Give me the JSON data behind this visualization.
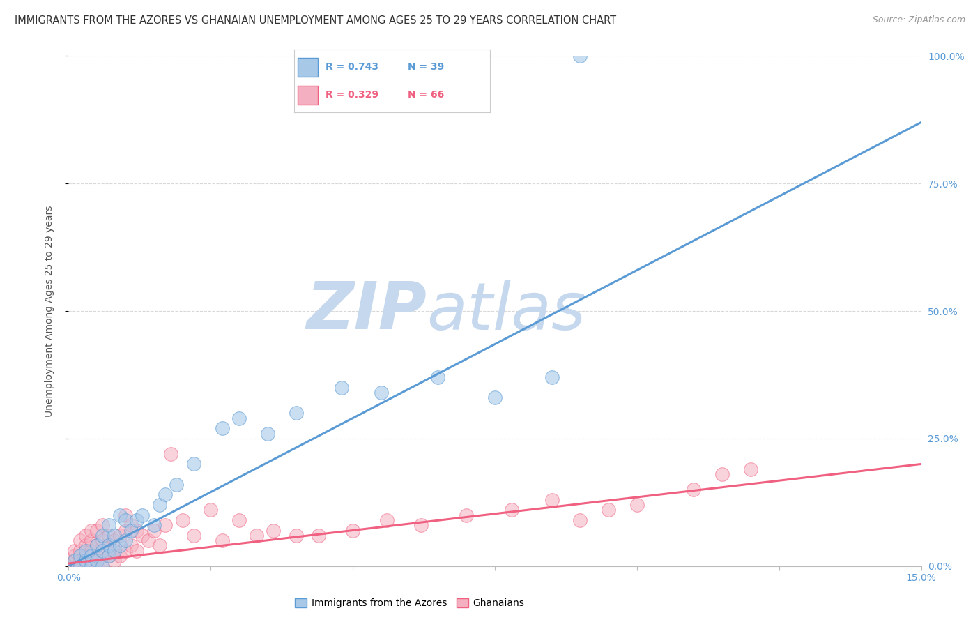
{
  "title": "IMMIGRANTS FROM THE AZORES VS GHANAIAN UNEMPLOYMENT AMONG AGES 25 TO 29 YEARS CORRELATION CHART",
  "source": "Source: ZipAtlas.com",
  "ylabel": "Unemployment Among Ages 25 to 29 years",
  "xmin": 0.0,
  "xmax": 0.15,
  "ymin": 0.0,
  "ymax": 1.0,
  "yticks_right": [
    0.0,
    0.25,
    0.5,
    0.75,
    1.0
  ],
  "ytick_labels_right": [
    "0.0%",
    "25.0%",
    "50.0%",
    "75.0%",
    "100.0%"
  ],
  "blue_R": 0.743,
  "blue_N": 39,
  "pink_R": 0.329,
  "pink_N": 66,
  "blue_color": "#a8c8e8",
  "pink_color": "#f4b0c0",
  "blue_line_color": "#5b9bd5",
  "pink_line_color": "#f06080",
  "legend_label_blue": "Immigrants from the Azores",
  "legend_label_pink": "Ghanaians",
  "watermark_zip": "ZIP",
  "watermark_atlas": "atlas",
  "watermark_color_zip": "#c5d8ed",
  "watermark_color_atlas": "#c5d8ed",
  "background_color": "#ffffff",
  "grid_color": "#d8d8d8",
  "blue_line_intercept": 0.0,
  "blue_line_slope": 5.8,
  "pink_line_intercept": 0.005,
  "pink_line_slope": 1.3,
  "blue_scatter_x": [
    0.001,
    0.002,
    0.002,
    0.003,
    0.003,
    0.004,
    0.004,
    0.005,
    0.005,
    0.006,
    0.006,
    0.006,
    0.007,
    0.007,
    0.007,
    0.008,
    0.008,
    0.009,
    0.009,
    0.01,
    0.01,
    0.011,
    0.012,
    0.013,
    0.015,
    0.016,
    0.017,
    0.019,
    0.022,
    0.027,
    0.03,
    0.035,
    0.04,
    0.048,
    0.055,
    0.065,
    0.075,
    0.085,
    0.09
  ],
  "blue_scatter_y": [
    0.01,
    0.0,
    0.02,
    0.01,
    0.03,
    0.0,
    0.02,
    0.01,
    0.04,
    0.0,
    0.03,
    0.06,
    0.02,
    0.04,
    0.08,
    0.03,
    0.06,
    0.04,
    0.1,
    0.05,
    0.09,
    0.07,
    0.09,
    0.1,
    0.08,
    0.12,
    0.14,
    0.16,
    0.2,
    0.27,
    0.29,
    0.26,
    0.3,
    0.35,
    0.34,
    0.37,
    0.33,
    0.37,
    1.0
  ],
  "pink_scatter_x": [
    0.0,
    0.001,
    0.001,
    0.001,
    0.002,
    0.002,
    0.002,
    0.002,
    0.003,
    0.003,
    0.003,
    0.003,
    0.004,
    0.004,
    0.004,
    0.004,
    0.005,
    0.005,
    0.005,
    0.005,
    0.006,
    0.006,
    0.006,
    0.006,
    0.007,
    0.007,
    0.007,
    0.008,
    0.008,
    0.008,
    0.009,
    0.009,
    0.01,
    0.01,
    0.01,
    0.011,
    0.011,
    0.012,
    0.012,
    0.013,
    0.014,
    0.015,
    0.016,
    0.017,
    0.018,
    0.02,
    0.022,
    0.025,
    0.027,
    0.03,
    0.033,
    0.036,
    0.04,
    0.044,
    0.05,
    0.056,
    0.062,
    0.07,
    0.078,
    0.085,
    0.09,
    0.095,
    0.1,
    0.11,
    0.115,
    0.12
  ],
  "pink_scatter_y": [
    0.0,
    0.01,
    0.02,
    0.03,
    0.0,
    0.01,
    0.03,
    0.05,
    0.0,
    0.02,
    0.04,
    0.06,
    0.01,
    0.03,
    0.05,
    0.07,
    0.0,
    0.02,
    0.04,
    0.07,
    0.01,
    0.03,
    0.05,
    0.08,
    0.02,
    0.04,
    0.06,
    0.01,
    0.03,
    0.05,
    0.02,
    0.06,
    0.03,
    0.07,
    0.1,
    0.04,
    0.08,
    0.03,
    0.07,
    0.06,
    0.05,
    0.07,
    0.04,
    0.08,
    0.22,
    0.09,
    0.06,
    0.11,
    0.05,
    0.09,
    0.06,
    0.07,
    0.06,
    0.06,
    0.07,
    0.09,
    0.08,
    0.1,
    0.11,
    0.13,
    0.09,
    0.11,
    0.12,
    0.15,
    0.18,
    0.19
  ]
}
